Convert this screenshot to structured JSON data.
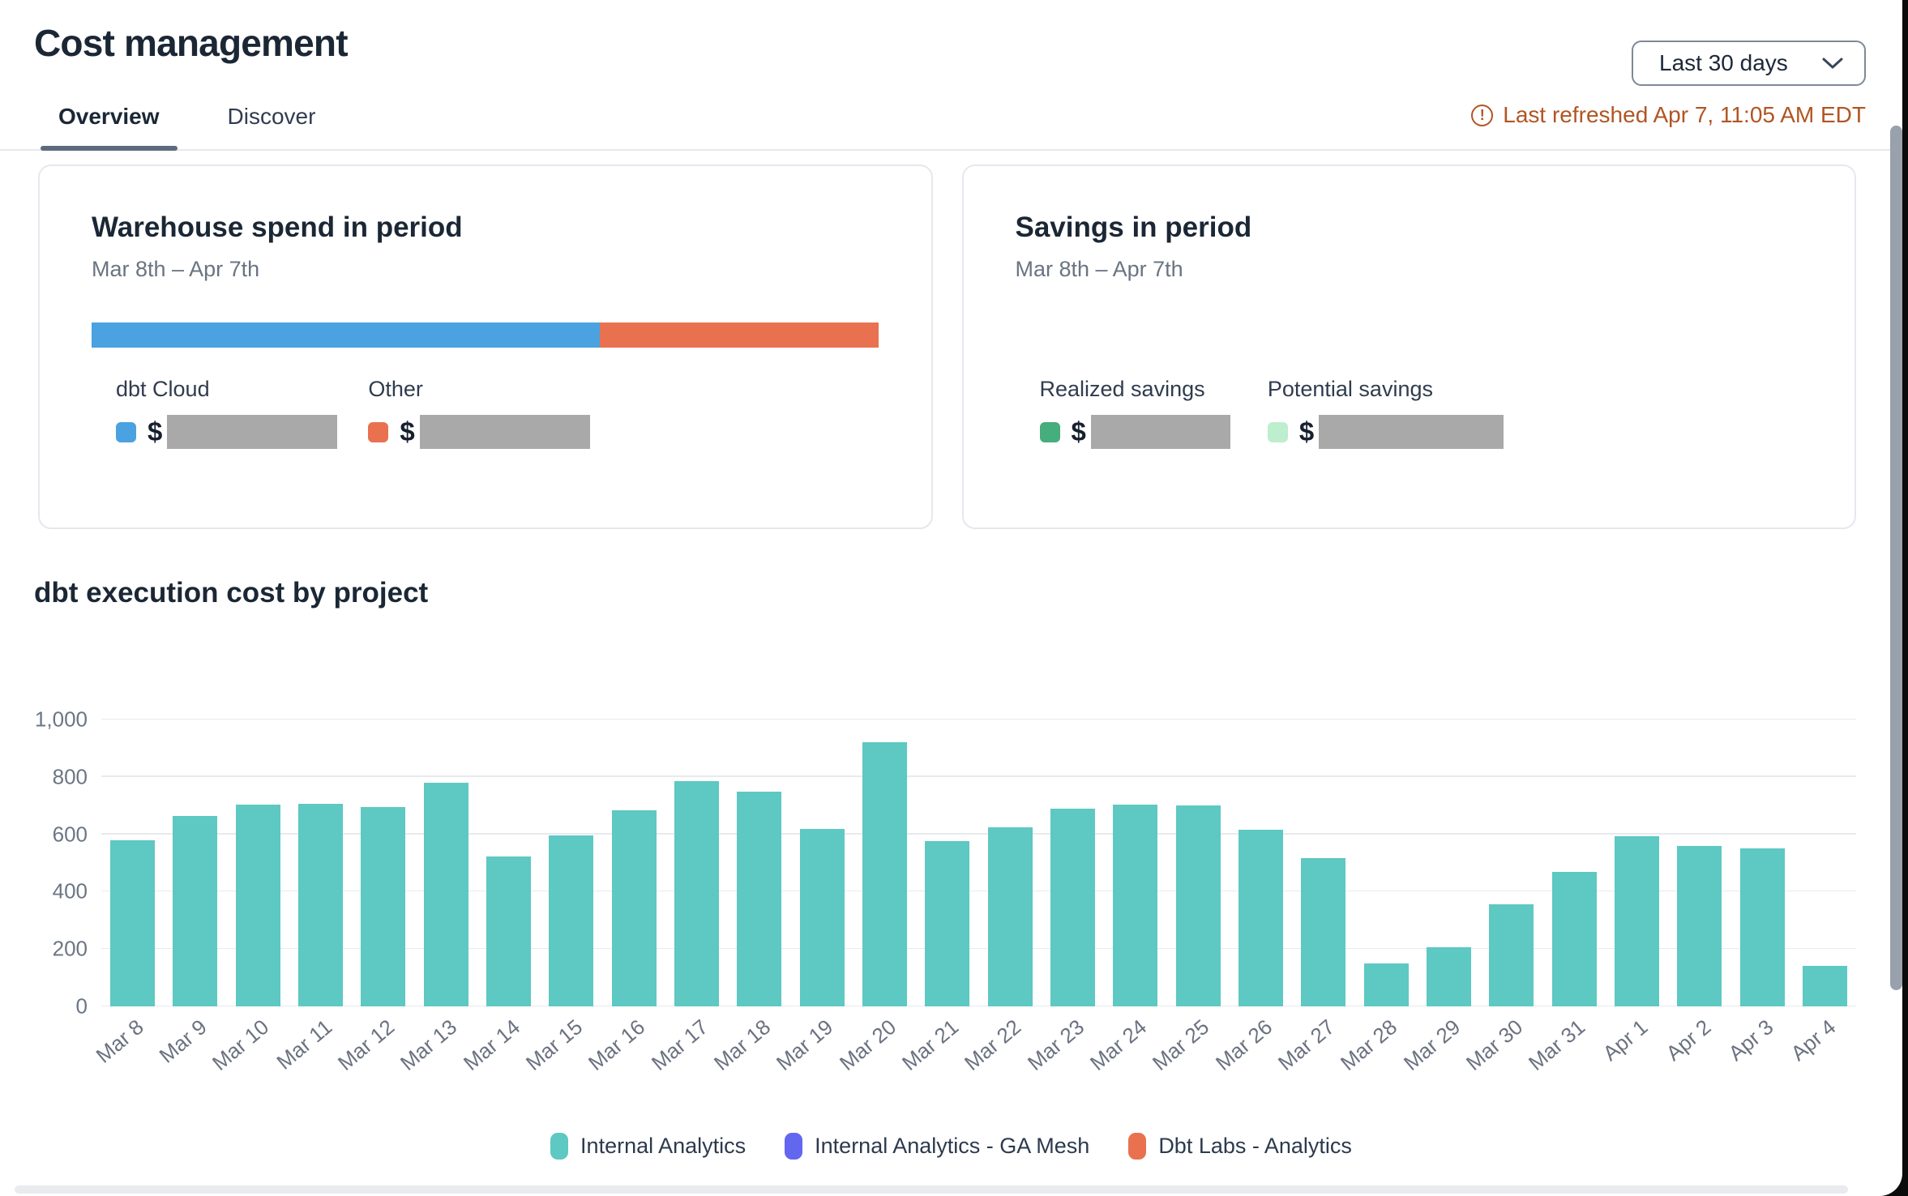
{
  "page_title": "Cost management",
  "header": {
    "period_selector": "Last 30 days",
    "last_refreshed": "Last refreshed Apr 7, 11:05 AM EDT",
    "alert_glyph": "!"
  },
  "tabs": [
    {
      "label": "Overview",
      "active": true
    },
    {
      "label": "Discover",
      "active": false
    }
  ],
  "warehouse_card": {
    "title": "Warehouse spend in period",
    "period": "Mar 8th – Apr 7th",
    "items": [
      {
        "label": "dbt Cloud",
        "color": "#4aa2e0",
        "currency": "$",
        "pct": 64.5,
        "value_redacted": true
      },
      {
        "label": "Other",
        "color": "#e9714f",
        "currency": "$",
        "pct": 35.5,
        "value_redacted": true
      }
    ]
  },
  "savings_card": {
    "title": "Savings in period",
    "period": "Mar 8th – Apr 7th",
    "items": [
      {
        "label": "Realized savings",
        "color": "#46ad7c",
        "currency": "$",
        "value_redacted": true
      },
      {
        "label": "Potential savings",
        "color": "#bdeecd",
        "currency": "$",
        "value_redacted": true
      }
    ]
  },
  "chart_section_title": "dbt execution cost by project",
  "chart_data": {
    "type": "bar",
    "title": "dbt execution cost by project",
    "categories": [
      "Mar 8",
      "Mar 9",
      "Mar 10",
      "Mar 11",
      "Mar 12",
      "Mar 13",
      "Mar 14",
      "Mar 15",
      "Mar 16",
      "Mar 17",
      "Mar 18",
      "Mar 19",
      "Mar 20",
      "Mar 21",
      "Mar 22",
      "Mar 23",
      "Mar 24",
      "Mar 25",
      "Mar 26",
      "Mar 27",
      "Mar 28",
      "Mar 29",
      "Mar 30",
      "Mar 31",
      "Apr 1",
      "Apr 2",
      "Apr 3",
      "Apr 4"
    ],
    "series": [
      {
        "name": "Internal Analytics",
        "color": "#5ec8c2",
        "values": [
          580,
          665,
          703,
          706,
          695,
          780,
          523,
          596,
          684,
          785,
          749,
          619,
          921,
          576,
          624,
          689,
          703,
          700,
          616,
          517,
          150,
          206,
          356,
          469,
          593,
          559,
          551,
          141
        ]
      }
    ],
    "legend": [
      {
        "label": "Internal Analytics",
        "color": "#5ec8c2"
      },
      {
        "label": "Internal Analytics - GA Mesh",
        "color": "#6366ee"
      },
      {
        "label": "Dbt Labs - Analytics",
        "color": "#e9714f"
      }
    ],
    "legend_position": "bottom",
    "grid": true,
    "ylim": [
      0,
      1000
    ],
    "yticks": [
      {
        "value": 0,
        "label": "0"
      },
      {
        "value": 200,
        "label": "200"
      },
      {
        "value": 400,
        "label": "400"
      },
      {
        "value": 600,
        "label": "600"
      },
      {
        "value": 800,
        "label": "800"
      },
      {
        "value": 1000,
        "label": "1,000"
      }
    ]
  }
}
